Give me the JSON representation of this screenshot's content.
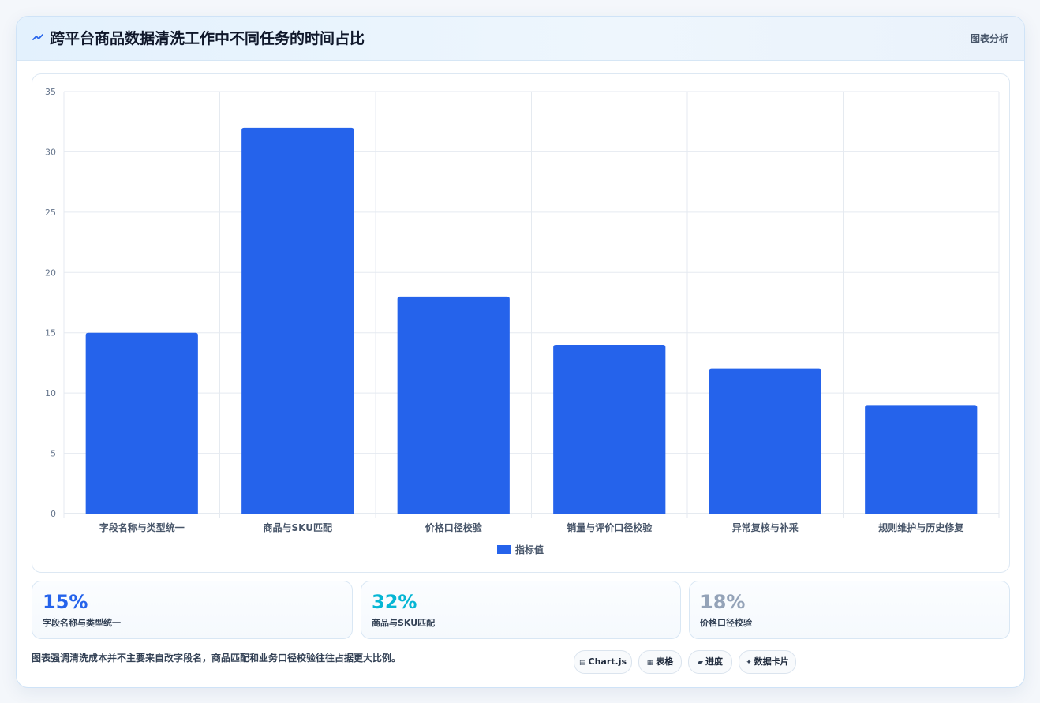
{
  "header": {
    "icon": "chart-line-icon",
    "title": "跨平台商品数据清洗工作中不同任务的时间占比",
    "tag": "图表分析"
  },
  "chart_data": {
    "type": "bar",
    "categories": [
      "字段名称与类型统一",
      "商品与SKU匹配",
      "价格口径校验",
      "销量与评价口径校验",
      "异常复核与补采",
      "规则维护与历史修复"
    ],
    "series": [
      {
        "name": "指标值",
        "values": [
          15,
          32,
          18,
          14,
          12,
          9
        ],
        "color": "#2563eb"
      }
    ],
    "ylim": [
      0,
      35
    ],
    "yticks": [
      0,
      5,
      10,
      15,
      20,
      25,
      30,
      35
    ],
    "grid": true,
    "legend": "bottom"
  },
  "stats": [
    {
      "value": "15%",
      "label": "字段名称与类型统一",
      "color": "#2563eb"
    },
    {
      "value": "32%",
      "label": "商品与SKU匹配",
      "color": "#06b6d4"
    },
    {
      "value": "18%",
      "label": "价格口径校验",
      "color": "#94a3b8"
    }
  ],
  "footer": {
    "note": "图表强调清洗成本并不主要来自改字段名，商品匹配和业务口径校验往往占据更大比例。",
    "chips": [
      {
        "label": "Chart.js",
        "icon": "chart-icon"
      },
      {
        "label": "表格",
        "icon": "table-icon"
      },
      {
        "label": "进度",
        "icon": "progress-icon"
      },
      {
        "label": "数据卡片",
        "icon": "sparkle-icon"
      }
    ]
  }
}
